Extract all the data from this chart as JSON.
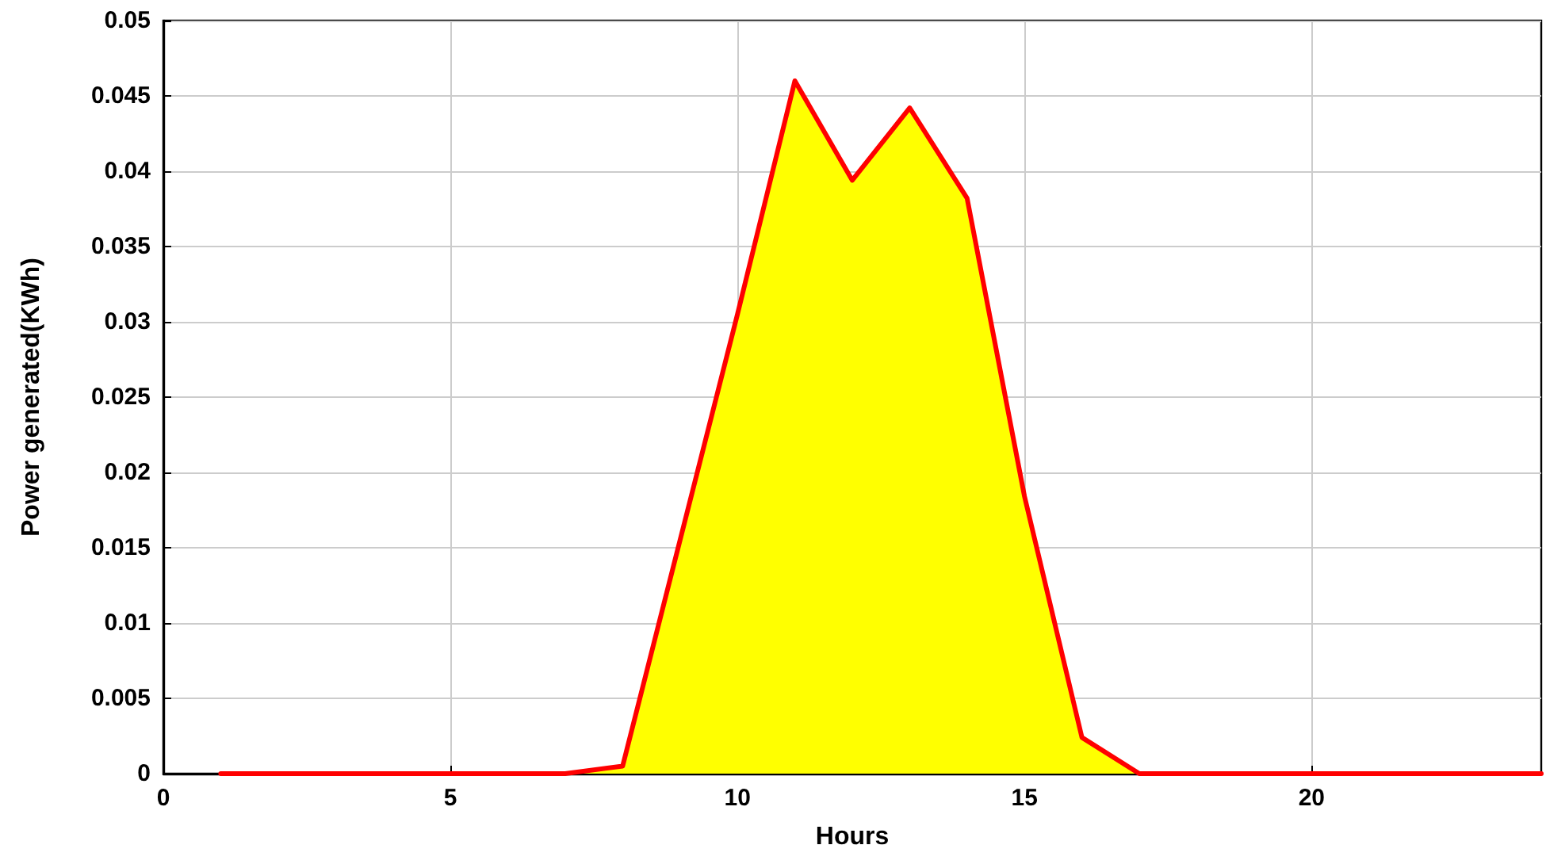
{
  "chart_data": {
    "type": "area",
    "xlabel": "Hours",
    "ylabel": "Power generated(KWh)",
    "x": [
      1,
      2,
      3,
      4,
      5,
      6,
      7,
      8,
      9,
      10,
      11,
      12,
      13,
      14,
      15,
      16,
      17,
      18,
      19,
      20,
      21,
      22,
      23,
      24
    ],
    "series": [
      {
        "color": "#ff0000",
        "values": [
          0,
          0,
          0,
          0,
          0,
          0,
          0,
          0.0005,
          0.0155,
          0.0305,
          0.046,
          0.0394,
          0.0442,
          0.0382,
          0.0184,
          0.0024,
          0,
          0,
          0,
          0,
          0,
          0,
          0,
          0
        ]
      }
    ],
    "xlim": [
      0,
      24
    ],
    "xticks": [
      0,
      5,
      10,
      15,
      20
    ],
    "ylim": [
      0,
      0.05
    ],
    "yticks": [
      0,
      0.005,
      0.01,
      0.015,
      0.02,
      0.025,
      0.03,
      0.035,
      0.04,
      0.045,
      0.05
    ],
    "grid": true,
    "marker": "none",
    "line_style": "solid"
  }
}
